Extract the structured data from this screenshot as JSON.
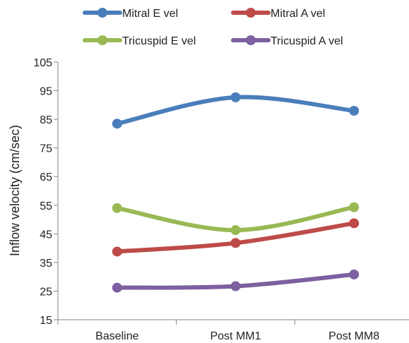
{
  "chart_data": {
    "type": "line",
    "categories": [
      "Baseline",
      "Post MM1",
      "Post MM8"
    ],
    "series": [
      {
        "name": "Mitral E vel",
        "values": [
          83.5,
          92.7,
          88.0
        ],
        "color": "#4a7ebb"
      },
      {
        "name": "Mitral A vel",
        "values": [
          38.8,
          41.8,
          48.7
        ],
        "color": "#be4b48"
      },
      {
        "name": "Tricuspid E vel",
        "values": [
          54.0,
          46.3,
          54.3
        ],
        "color": "#98b954"
      },
      {
        "name": "Tricuspid A vel",
        "values": [
          26.2,
          26.7,
          30.8
        ],
        "color": "#7d60a0"
      }
    ],
    "ylabel": "Inflow velocity (cm/sec)",
    "xlabel": "",
    "ylim": [
      15,
      105
    ],
    "yticks": [
      15,
      25,
      35,
      45,
      55,
      65,
      75,
      85,
      95,
      105
    ],
    "smooth": true,
    "grid": false,
    "legend_position": "top"
  }
}
